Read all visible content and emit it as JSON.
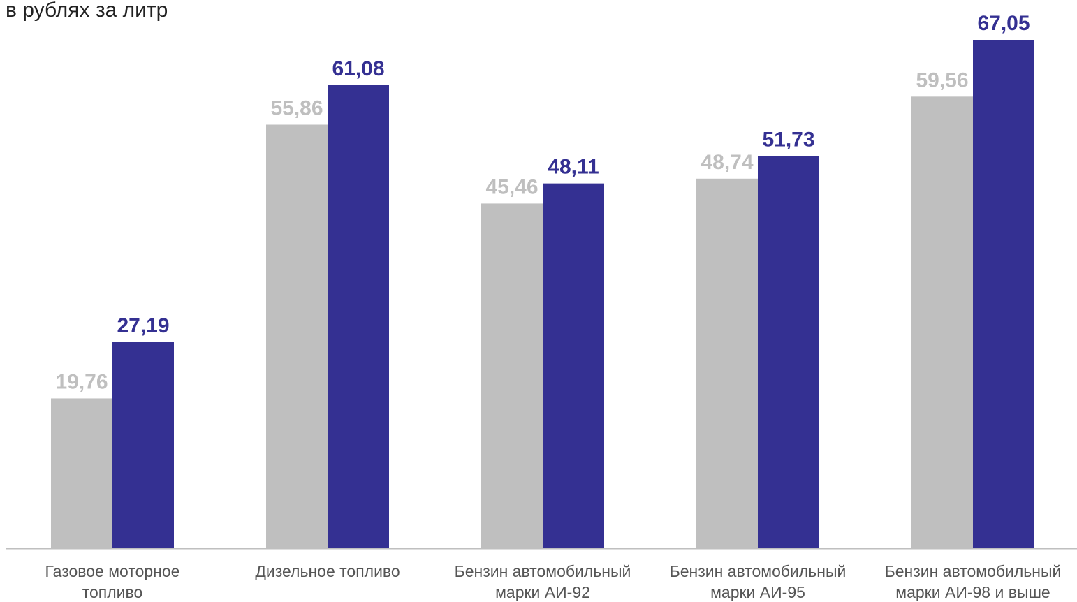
{
  "chart_data": {
    "type": "bar",
    "unit_label": "в рублях за литр",
    "categories": [
      [
        "Газовое моторное",
        "топливо"
      ],
      [
        "Дизельное топливо"
      ],
      [
        "Бензин автомобильный",
        "марки АИ-92"
      ],
      [
        "Бензин автомобильный",
        "марки АИ-95"
      ],
      [
        "Бензин автомобильный",
        "марки АИ-98 и выше"
      ]
    ],
    "series": [
      {
        "values": [
          19.76,
          55.86,
          45.46,
          48.74,
          59.56
        ],
        "labels": [
          "19,76",
          "55,86",
          "45,46",
          "48,74",
          "59,56"
        ],
        "color": "#bfbfbf"
      },
      {
        "values": [
          27.19,
          61.08,
          48.11,
          51.73,
          67.05
        ],
        "labels": [
          "27,19",
          "61,08",
          "48,11",
          "51,73",
          "67,05"
        ],
        "color": "#343092"
      }
    ],
    "ylim": [
      0,
      67.05
    ],
    "grid": false,
    "baseline_color": "#bfbfbf"
  }
}
